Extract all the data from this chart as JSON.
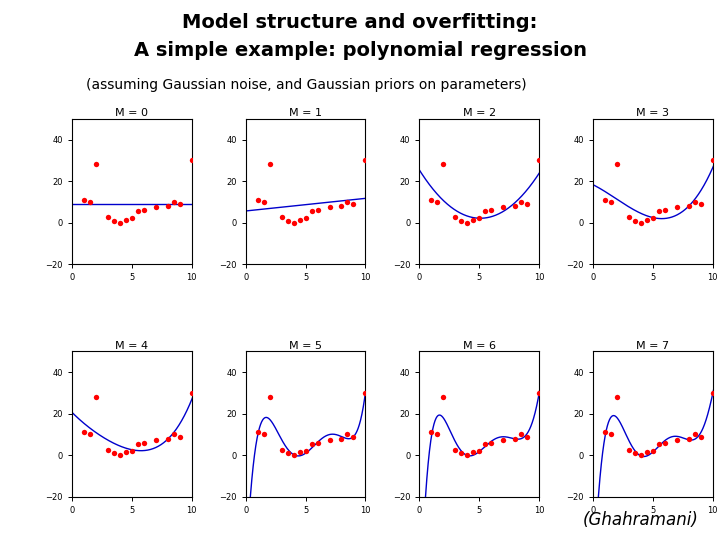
{
  "title_line1": "Model structure and overfitting:",
  "title_line2": "A simple example: polynomial regression",
  "subtitle": "(assuming Gaussian noise, and Gaussian priors on parameters)",
  "attribution": "(Ghahramani)",
  "title_fontsize": 14,
  "subtitle_fontsize": 10,
  "attribution_fontsize": 12,
  "M_values": [
    0,
    1,
    2,
    3,
    4,
    5,
    6,
    7
  ],
  "data_x": [
    1.0,
    1.5,
    2.0,
    3.0,
    3.5,
    4.0,
    4.5,
    5.0,
    5.5,
    6.0,
    7.0,
    8.0,
    8.5,
    9.0,
    10.0
  ],
  "data_y": [
    11.0,
    10.0,
    28.0,
    2.5,
    1.0,
    0.0,
    1.5,
    2.0,
    5.5,
    6.0,
    7.5,
    8.0,
    10.0,
    9.0,
    30.0
  ],
  "line_color": "#0000cc",
  "dot_color": "#ff0000",
  "xlim": [
    0,
    10
  ],
  "ylim": [
    -20,
    50
  ],
  "xticks": [
    0,
    5,
    10
  ],
  "yticks": [
    -20,
    0,
    20,
    40
  ],
  "background_color": "#ffffff"
}
